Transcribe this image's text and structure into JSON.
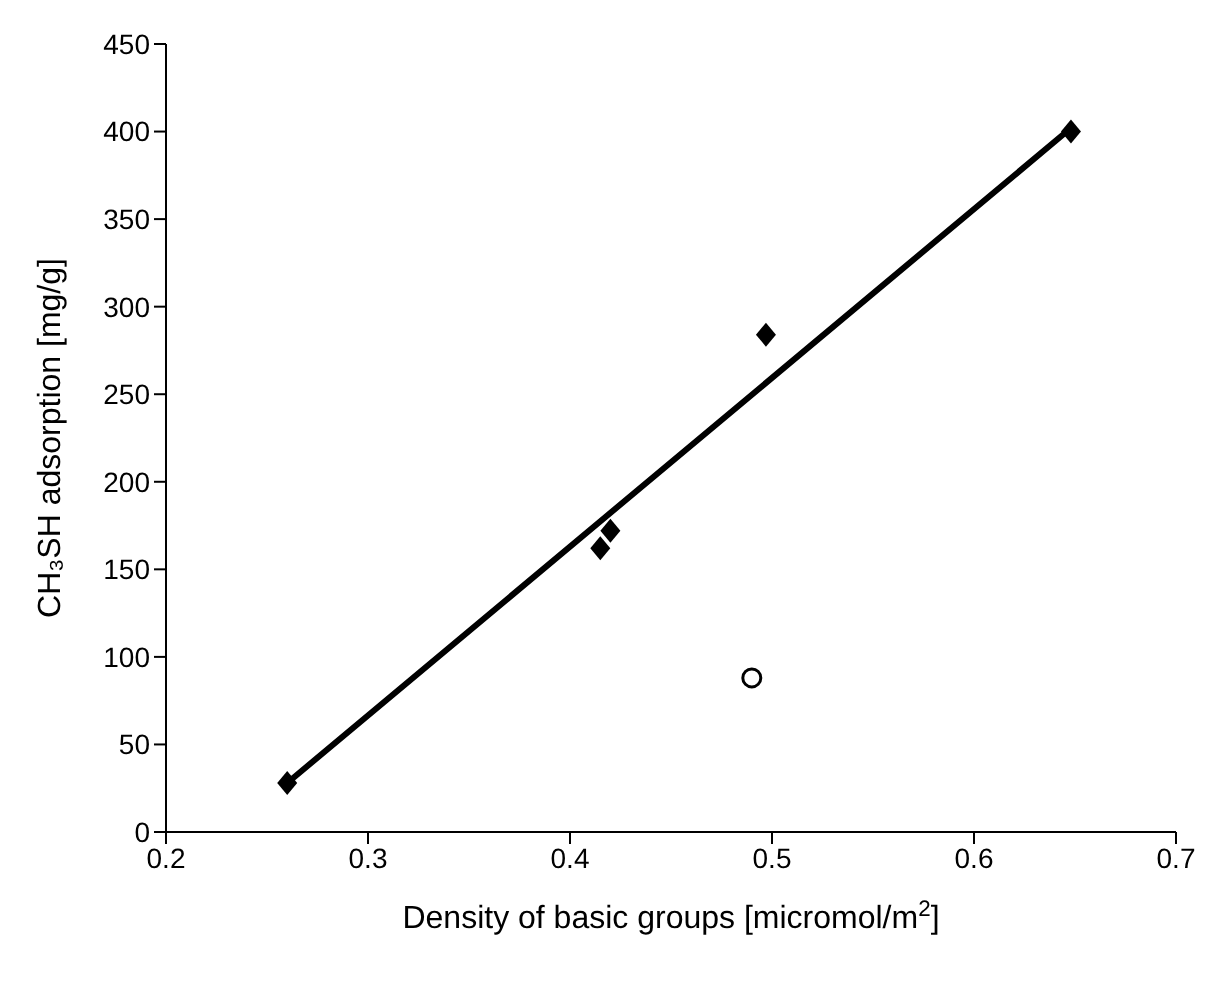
{
  "chart_data": {
    "type": "scatter",
    "xlabel": "Density of basic groups [micromol/m$^{2}$]",
    "ylabel": "CH₃SH adsorption [mg/g]",
    "xlim": [
      0.2,
      0.7
    ],
    "xticks": [
      0.2,
      0.3,
      0.4,
      0.5,
      0.6,
      0.7
    ],
    "ylim": [
      0,
      450
    ],
    "yticks": [
      0,
      50,
      100,
      150,
      200,
      250,
      300,
      350,
      400,
      450
    ],
    "grid": false,
    "legend": false,
    "series": [
      {
        "marker": "diamond",
        "color": "#000000",
        "x": [
          0.26,
          0.415,
          0.42,
          0.497,
          0.648
        ],
        "values": [
          28,
          162,
          172,
          284,
          400
        ]
      },
      {
        "marker": "circle",
        "color": "#000000",
        "x": [
          0.49
        ],
        "values": [
          88
        ]
      },
      {
        "type": "line",
        "marker": "none",
        "color": "#000000",
        "x": [
          0.26,
          0.648
        ],
        "values": [
          28,
          402
        ]
      }
    ]
  }
}
